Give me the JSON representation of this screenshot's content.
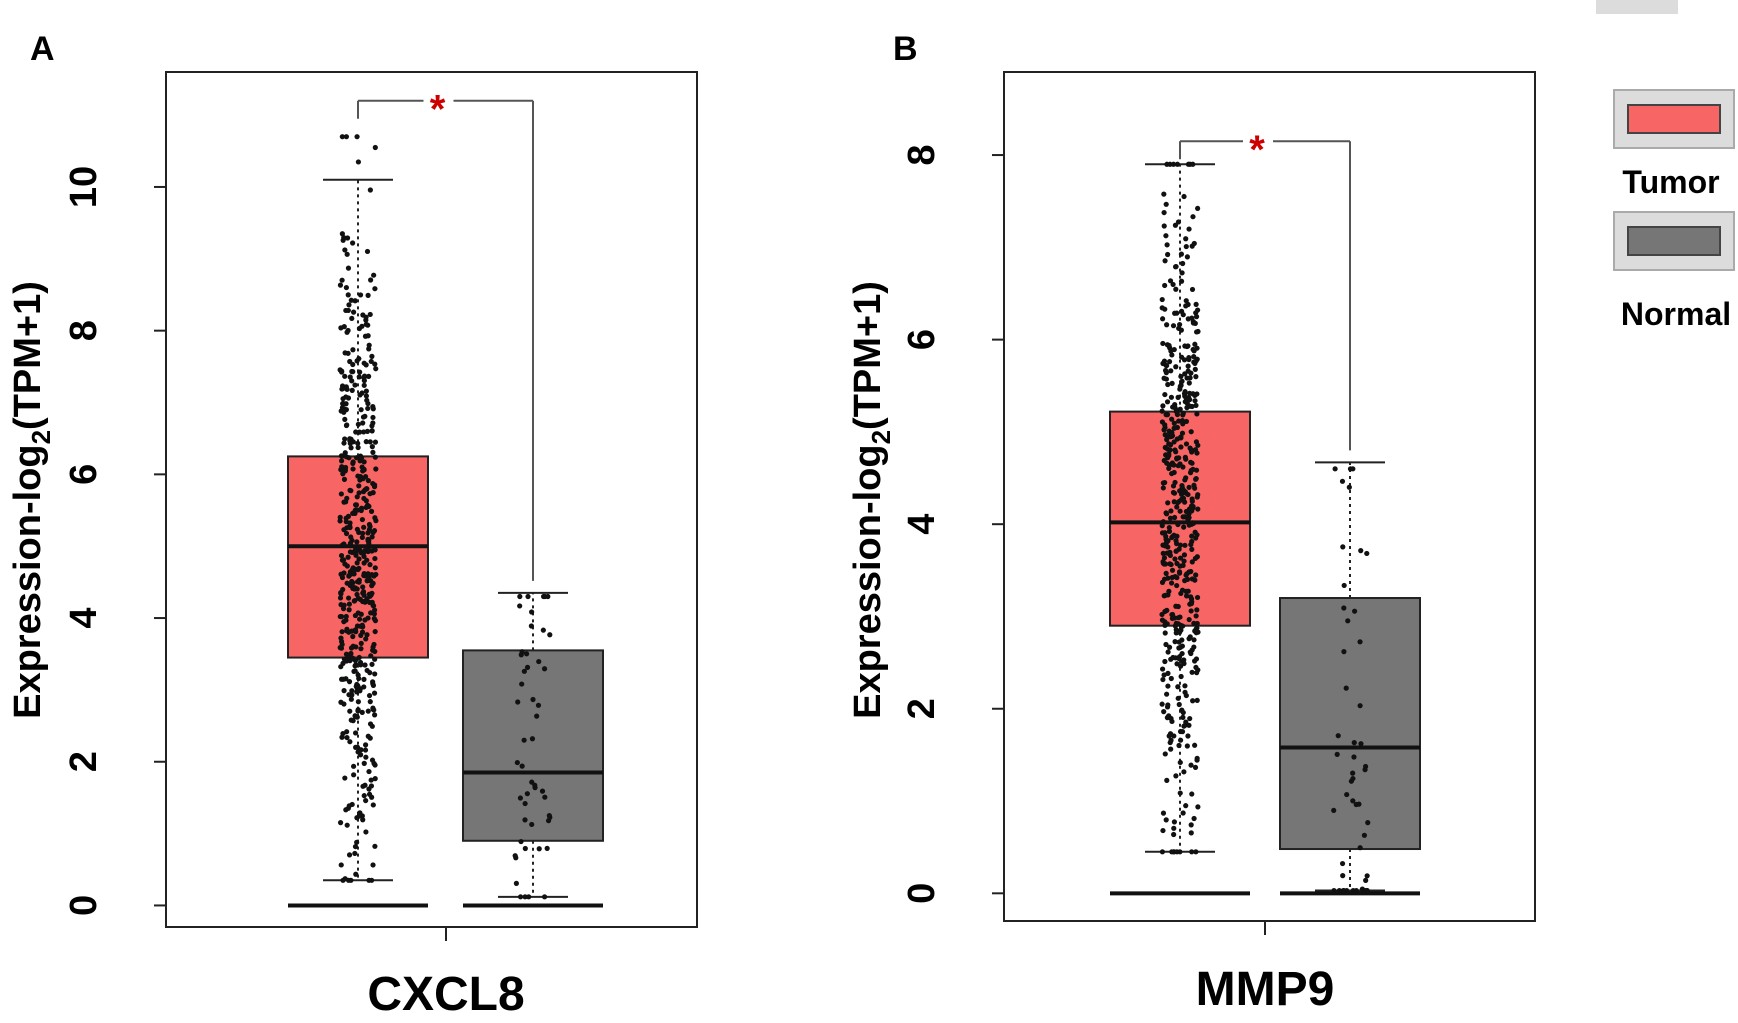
{
  "colors": {
    "tumor": "#f86565",
    "normal": "#767676",
    "significance": "#cc0000",
    "points": "#111111",
    "legend_frame": "#dcdcdc"
  },
  "legend": {
    "items": [
      {
        "label": "Tumor",
        "color": "#f86565"
      },
      {
        "label": "Normal",
        "color": "#767676"
      }
    ]
  },
  "chart_data": [
    {
      "type": "boxplot",
      "panel_label": "A",
      "title": "",
      "xlabel": "CXCL8",
      "ylabel_main": "Expression-log",
      "ylabel_sub": "2",
      "ylabel_tail": "(TPM+1)",
      "ylim": [
        -0.3,
        11.6
      ],
      "yticks": [
        0,
        2,
        4,
        6,
        8,
        10
      ],
      "significance": "*",
      "groups": [
        {
          "name": "Tumor",
          "q1": 3.45,
          "median": 5.0,
          "q3": 6.25,
          "whisker_low": 0.35,
          "whisker_high": 10.1,
          "n_points": 520,
          "max_point": 10.7,
          "zero_line": 0
        },
        {
          "name": "Normal",
          "q1": 0.9,
          "median": 1.85,
          "q3": 3.55,
          "whisker_low": 0.12,
          "whisker_high": 4.35,
          "n_points": 50,
          "max_point": 4.3,
          "zero_line": 0
        }
      ],
      "bracket_y": 11.2
    },
    {
      "type": "boxplot",
      "panel_label": "B",
      "title": "",
      "xlabel": "MMP9",
      "ylabel_main": "Expression-log",
      "ylabel_sub": "2",
      "ylabel_tail": "(TPM+1)",
      "ylim": [
        -0.3,
        8.9
      ],
      "yticks": [
        0,
        2,
        4,
        6,
        8
      ],
      "significance": "*",
      "groups": [
        {
          "name": "Tumor",
          "q1": 2.9,
          "median": 4.02,
          "q3": 5.22,
          "whisker_low": 0.45,
          "whisker_high": 7.9,
          "n_points": 520,
          "max_point": 7.9,
          "zero_line": 0
        },
        {
          "name": "Normal",
          "q1": 0.48,
          "median": 1.58,
          "q3": 3.2,
          "whisker_low": 0.03,
          "whisker_high": 4.67,
          "n_points": 50,
          "max_point": 4.6,
          "zero_line": 0
        }
      ],
      "bracket_y": 8.15
    }
  ]
}
